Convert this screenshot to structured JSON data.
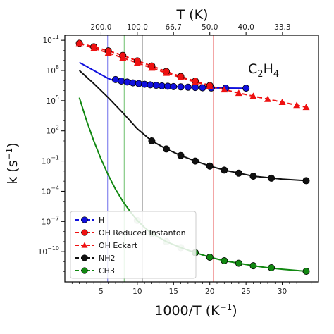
{
  "chart_data": {
    "type": "line",
    "xlabel": "1000/T (K",
    "xlabel_sup": "−1",
    "xlabel_tail": ")",
    "ylabel": "k (s",
    "ylabel_sup": "−1",
    "ylabel_tail": ")",
    "top_xlabel": "T (K)",
    "annotation_main": "C",
    "annotation_sub": "2",
    "annotation_mid": "H",
    "annotation_sub2": "4",
    "x_lim": [
      0,
      35
    ],
    "y_log10_lim": [
      -13,
      11.5
    ],
    "y_scale": "log",
    "x_ticks": [
      5,
      10,
      15,
      20,
      25,
      30
    ],
    "y_ticks": [
      {
        "exp": 11,
        "label": "10",
        "sup": "11"
      },
      {
        "exp": 8,
        "label": "10",
        "sup": "8"
      },
      {
        "exp": 5,
        "label": "10",
        "sup": "5"
      },
      {
        "exp": 2,
        "label": "10",
        "sup": "2"
      },
      {
        "exp": -1,
        "label": "10",
        "sup": "−1"
      },
      {
        "exp": -4,
        "label": "10",
        "sup": "−4"
      },
      {
        "exp": -7,
        "label": "10",
        "sup": "−7"
      },
      {
        "exp": -10,
        "label": "10",
        "sup": "−10"
      }
    ],
    "top_ticks": [
      {
        "T": 200,
        "label": "200.0"
      },
      {
        "T": 100,
        "label": "100.0"
      },
      {
        "T": 66.7,
        "label": "66.7"
      },
      {
        "T": 50,
        "label": "50.0"
      },
      {
        "T": 40,
        "label": "40.0"
      },
      {
        "T": 33.3,
        "label": "33.3"
      }
    ],
    "vlines": [
      {
        "x": 5.9,
        "color": "#8f8ff0"
      },
      {
        "x": 8.2,
        "color": "#8fcf8f"
      },
      {
        "x": 10.7,
        "color": "#9a9a9a"
      },
      {
        "x": 20.5,
        "color": "#f08f8f"
      }
    ],
    "series": [
      {
        "name": "H",
        "color": "#1010dd",
        "dash": "",
        "marker": "circle",
        "line_x": [
          2,
          3,
          4,
          5,
          6,
          7,
          8,
          9,
          10,
          12,
          14,
          16,
          18,
          20,
          22,
          25
        ],
        "line_log10": [
          8.8,
          8.4,
          8.0,
          7.6,
          7.2,
          6.95,
          6.8,
          6.68,
          6.6,
          6.5,
          6.42,
          6.36,
          6.32,
          6.28,
          6.25,
          6.23
        ],
        "marker_x": [
          7.0,
          7.8,
          8.6,
          9.4,
          10.2,
          11.0,
          11.8,
          12.6,
          13.4,
          14.2,
          15.0,
          16.0,
          17.0,
          18.0,
          19.0,
          20.2,
          22.2,
          25.0
        ],
        "marker_log10": [
          7.1,
          6.95,
          6.85,
          6.77,
          6.7,
          6.63,
          6.57,
          6.52,
          6.47,
          6.43,
          6.4,
          6.37,
          6.34,
          6.31,
          6.28,
          6.26,
          6.25,
          6.24
        ]
      },
      {
        "name": "OH Reduced Instanton",
        "color": "#ee1111",
        "dash": "7,4",
        "marker": "circle",
        "line_x": [
          2,
          4,
          6,
          8,
          10,
          12,
          14,
          16,
          18,
          20
        ],
        "line_log10": [
          10.7,
          10.35,
          9.95,
          9.5,
          8.95,
          8.45,
          7.9,
          7.4,
          6.95,
          6.5
        ],
        "marker_x": [
          2,
          4,
          6,
          8,
          10,
          12,
          14,
          16,
          18,
          20
        ],
        "marker_log10": [
          10.7,
          10.35,
          9.95,
          9.5,
          8.95,
          8.45,
          7.9,
          7.4,
          6.95,
          6.5
        ]
      },
      {
        "name": "OH Eckart",
        "color": "#ee1111",
        "dash": "7,4",
        "marker": "triangle",
        "line_x": [
          2,
          4,
          6,
          8,
          10,
          12,
          14,
          16,
          18,
          20,
          22,
          24,
          26,
          28,
          30,
          32,
          33.3
        ],
        "line_log10": [
          10.7,
          10.2,
          9.75,
          9.25,
          8.75,
          8.25,
          7.75,
          7.3,
          6.85,
          6.45,
          6.1,
          5.75,
          5.45,
          5.15,
          4.85,
          4.55,
          4.35
        ],
        "marker_x": [
          2,
          4,
          6,
          8,
          10,
          12,
          14,
          16,
          18,
          20,
          22,
          24,
          26,
          28,
          30,
          32,
          33.3
        ],
        "marker_log10": [
          10.7,
          10.2,
          9.75,
          9.25,
          8.75,
          8.25,
          7.75,
          7.3,
          6.85,
          6.45,
          6.1,
          5.75,
          5.45,
          5.15,
          4.85,
          4.55,
          4.35
        ]
      },
      {
        "name": "NH2",
        "color": "#111111",
        "dash": "",
        "marker": "circle",
        "line_x": [
          2,
          4,
          6,
          8,
          10,
          12,
          14,
          16,
          18,
          20,
          22,
          24,
          26,
          28,
          30,
          33.3
        ],
        "line_log10": [
          8.0,
          6.7,
          5.3,
          3.8,
          2.2,
          1.0,
          0.2,
          -0.45,
          -1.0,
          -1.5,
          -1.9,
          -2.2,
          -2.5,
          -2.65,
          -2.8,
          -2.95
        ],
        "marker_x": [
          12,
          14,
          16,
          18,
          20,
          22,
          24,
          26,
          28.5,
          33.3
        ],
        "marker_log10": [
          1.0,
          0.2,
          -0.45,
          -1.0,
          -1.5,
          -1.9,
          -2.2,
          -2.5,
          -2.7,
          -2.95
        ],
        "faded_until": 0
      },
      {
        "name": "CH3",
        "color": "#118811",
        "dash": "",
        "marker": "circle",
        "line_x": [
          2,
          3,
          4,
          5,
          6,
          7,
          8,
          9,
          10,
          11,
          12,
          14,
          16,
          18,
          20,
          22,
          24,
          26,
          28,
          30,
          33.3
        ],
        "line_log10": [
          5.3,
          3.0,
          1.0,
          -0.8,
          -2.4,
          -3.8,
          -5.0,
          -6.0,
          -6.9,
          -7.6,
          -8.2,
          -9.0,
          -9.6,
          -10.1,
          -10.55,
          -10.9,
          -11.15,
          -11.4,
          -11.6,
          -11.75,
          -11.95
        ],
        "marker_x": [
          10,
          12,
          14,
          16,
          18,
          20,
          22,
          24,
          26,
          28.5,
          33.3
        ],
        "marker_log10": [
          -6.9,
          -8.2,
          -9.0,
          -9.6,
          -10.1,
          -10.55,
          -10.9,
          -11.15,
          -11.4,
          -11.6,
          -11.95
        ],
        "faded_count": 4
      }
    ],
    "legend": {
      "placement": "lower-left",
      "entries": [
        {
          "label": "H",
          "color": "#1010dd",
          "marker": "circle"
        },
        {
          "label": "OH Reduced Instanton",
          "color": "#ee1111",
          "marker": "circle"
        },
        {
          "label": "OH Eckart",
          "color": "#ee1111",
          "marker": "triangle"
        },
        {
          "label": "NH2",
          "color": "#111111",
          "marker": "circle"
        },
        {
          "label": "CH3",
          "color": "#118811",
          "marker": "circle"
        }
      ]
    }
  }
}
